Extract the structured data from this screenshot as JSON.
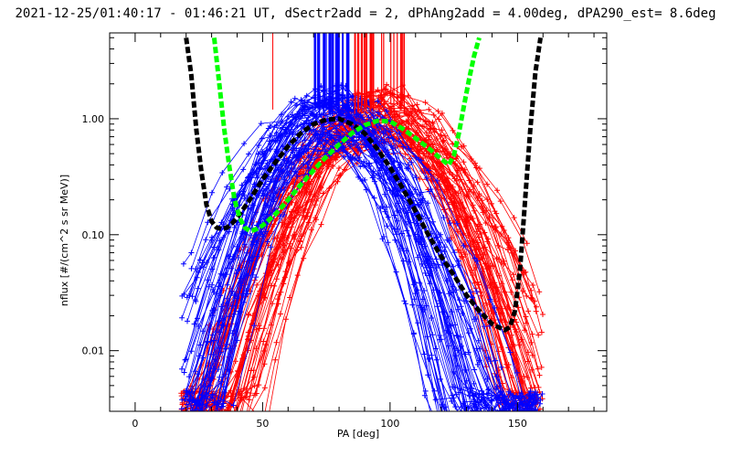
{
  "chart_data": {
    "type": "line",
    "title": "2021-12-25/01:40:17 - 01:46:21 UT, dSectr2add = 2, dPhAng2add = 4.00deg, dPA290_est=   8.6deg",
    "xlabel": "PA [deg]",
    "ylabel": "nflux [#/(cm^2 s sr MeV)]",
    "xlim": [
      -10,
      185
    ],
    "ylim": [
      0.003,
      5.5
    ],
    "yscale": "log",
    "grid": false,
    "legend": "none",
    "x_ticks": [
      0,
      50,
      100,
      150
    ],
    "x_tick_labels": [
      "0",
      "50",
      "100",
      "150"
    ],
    "y_ticks": [
      0.01,
      0.1,
      1.0
    ],
    "y_tick_labels": [
      "0.01",
      "0.10",
      "1.00"
    ],
    "colors": {
      "blue": "#0000ff",
      "red": "#ff0000",
      "black": "#000000",
      "green": "#00ff00"
    },
    "series": [
      {
        "color": "#000000",
        "style": "dashed-thick",
        "x": [
          20,
          22,
          24,
          26,
          28,
          30,
          32,
          34,
          36,
          38,
          40,
          45,
          50,
          55,
          60,
          65,
          70,
          75,
          80,
          85,
          90,
          95,
          100,
          105,
          110,
          115,
          120,
          125,
          130,
          135,
          140,
          145,
          147,
          149,
          151,
          153,
          155,
          157,
          159
        ],
        "y": [
          5.0,
          2.4,
          0.8,
          0.35,
          0.18,
          0.13,
          0.115,
          0.112,
          0.115,
          0.125,
          0.14,
          0.2,
          0.3,
          0.42,
          0.58,
          0.75,
          0.9,
          0.98,
          1.0,
          0.9,
          0.75,
          0.55,
          0.38,
          0.25,
          0.16,
          0.1,
          0.065,
          0.045,
          0.03,
          0.022,
          0.017,
          0.015,
          0.016,
          0.022,
          0.05,
          0.2,
          0.8,
          2.5,
          5.0
        ]
      },
      {
        "color": "#00ff00",
        "style": "dashed-thick",
        "x": [
          31,
          33,
          35,
          37,
          39,
          41,
          43,
          45,
          47,
          50,
          55,
          60,
          65,
          70,
          75,
          80,
          85,
          90,
          95,
          100,
          105,
          110,
          115,
          120,
          123,
          125,
          127,
          129,
          131,
          133,
          135
        ],
        "y": [
          5.0,
          2.0,
          0.8,
          0.38,
          0.2,
          0.14,
          0.115,
          0.108,
          0.11,
          0.12,
          0.15,
          0.2,
          0.27,
          0.36,
          0.47,
          0.6,
          0.75,
          0.88,
          0.96,
          0.95,
          0.82,
          0.68,
          0.56,
          0.45,
          0.4,
          0.48,
          0.75,
          1.3,
          2.2,
          3.5,
          5.0
        ]
      }
    ]
  }
}
